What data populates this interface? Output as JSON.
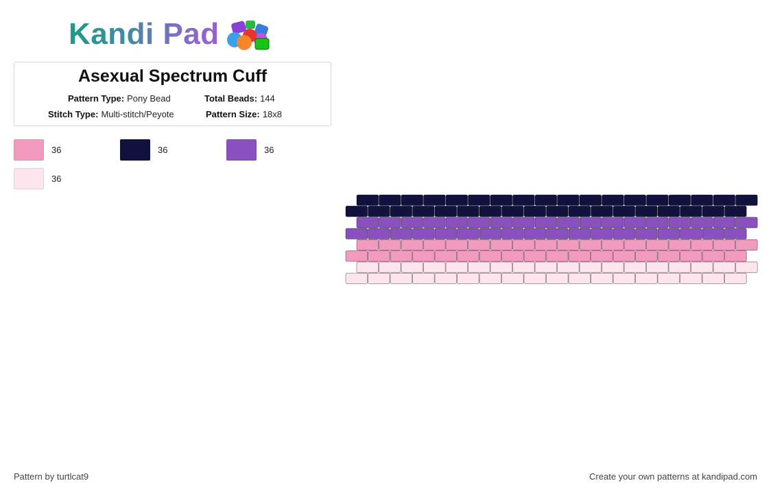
{
  "logo": {
    "text": "Kandi Pad",
    "icon": "bead-pile-icon"
  },
  "info": {
    "title": "Asexual Spectrum Cuff",
    "pattern_type_label": "Pattern Type:",
    "pattern_type_value": "Pony Bead",
    "total_beads_label": "Total Beads:",
    "total_beads_value": "144",
    "stitch_type_label": "Stitch Type:",
    "stitch_type_value": "Multi-stitch/Peyote",
    "pattern_size_label": "Pattern Size:",
    "pattern_size_value": "18x8"
  },
  "legend": [
    {
      "color": "#f29bbf",
      "count": "36"
    },
    {
      "color": "#12123f",
      "count": "36"
    },
    {
      "color": "#8a50c0",
      "count": "36"
    },
    {
      "color": "#fde5ee",
      "count": "36"
    }
  ],
  "pattern": {
    "columns": 18,
    "rows": 8,
    "row_colors": [
      "#12123f",
      "#12123f",
      "#8a50c0",
      "#8a50c0",
      "#f29bbf",
      "#f29bbf",
      "#fde5ee",
      "#fde5ee"
    ]
  },
  "footer": {
    "credit": "Pattern by turtlcat9",
    "cta": "Create your own patterns at kandipad.com"
  }
}
